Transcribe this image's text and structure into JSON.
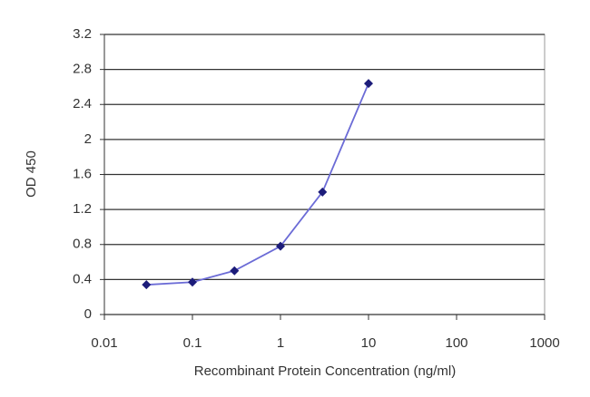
{
  "chart_data": {
    "type": "line",
    "x_label": "Recombinant Protein Concentration (ng/ml)",
    "y_label": "OD 450",
    "x": [
      0.03,
      0.1,
      0.3,
      1,
      3,
      10
    ],
    "series": [
      {
        "color": "#6b6bd6",
        "marker_color": "#1c1c7a",
        "values": [
          0.34,
          0.37,
          0.5,
          0.78,
          1.4,
          2.64
        ]
      }
    ],
    "xscale": "log",
    "xlim": [
      0.01,
      1000
    ],
    "xticks": [
      0.01,
      0.1,
      1,
      10,
      100,
      1000
    ],
    "ylim": [
      0,
      3.2
    ],
    "yticks": [
      0,
      0.4,
      0.8,
      1.2,
      1.6,
      2,
      2.4,
      2.8,
      3.2
    ],
    "grid": true
  }
}
